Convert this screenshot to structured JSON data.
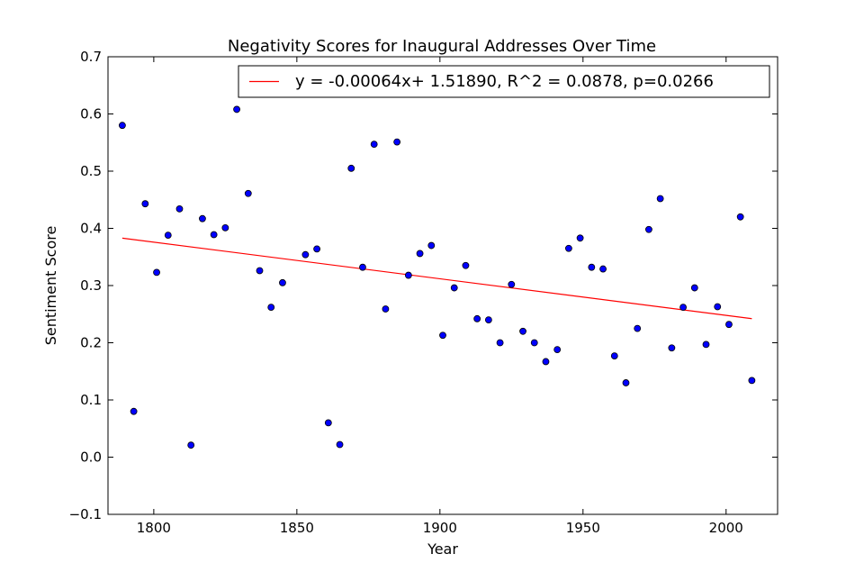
{
  "chart_data": {
    "type": "scatter",
    "title": "Negativity Scores for Inaugural Addresses Over Time",
    "xlabel": "Year",
    "ylabel": "Sentiment Score",
    "xlim": [
      1784,
      2018
    ],
    "ylim": [
      -0.1,
      0.7
    ],
    "xticks": [
      "1800",
      "1850",
      "1900",
      "1950",
      "2000"
    ],
    "yticks": [
      "−0.1",
      "0.0",
      "0.1",
      "0.2",
      "0.3",
      "0.4",
      "0.5",
      "0.6",
      "0.7"
    ],
    "grid": false,
    "legend_position": "top-right",
    "colors": {
      "points": "#0000ff",
      "point_edge": "#000000",
      "fit_line": "#ff0000"
    },
    "points": {
      "x": [
        1789,
        1793,
        1797,
        1801,
        1805,
        1809,
        1813,
        1817,
        1821,
        1825,
        1829,
        1833,
        1837,
        1841,
        1845,
        1849,
        1853,
        1857,
        1861,
        1865,
        1869,
        1873,
        1877,
        1881,
        1885,
        1889,
        1893,
        1897,
        1901,
        1905,
        1909,
        1913,
        1917,
        1921,
        1925,
        1929,
        1933,
        1937,
        1941,
        1945,
        1949,
        1953,
        1957,
        1961,
        1965,
        1969,
        1973,
        1977,
        1981,
        1985,
        1989,
        1993,
        1997,
        2001,
        2005,
        2009
      ],
      "y": [
        0.58,
        0.08,
        0.443,
        0.323,
        0.388,
        0.434,
        0.021,
        0.417,
        0.389,
        0.401,
        0.608,
        0.461,
        0.326,
        0.262,
        0.305,
        null,
        0.354,
        0.364,
        0.06,
        0.022,
        0.505,
        0.332,
        0.547,
        0.259,
        0.551,
        0.318,
        0.356,
        0.37,
        0.213,
        0.296,
        0.335,
        0.242,
        0.24,
        0.2,
        0.302,
        0.22,
        0.2,
        0.167,
        0.188,
        0.365,
        0.383,
        0.332,
        0.329,
        0.177,
        0.13,
        0.225,
        0.398,
        0.452,
        0.191,
        0.262,
        0.296,
        0.197,
        0.263,
        0.232,
        0.42,
        0.134
      ]
    },
    "fit_line": {
      "label": "y = -0.00064x+ 1.51890, R^2 = 0.0878, p=0.0266",
      "x": [
        1789,
        2009
      ],
      "y": [
        0.3829,
        0.2421
      ]
    }
  }
}
